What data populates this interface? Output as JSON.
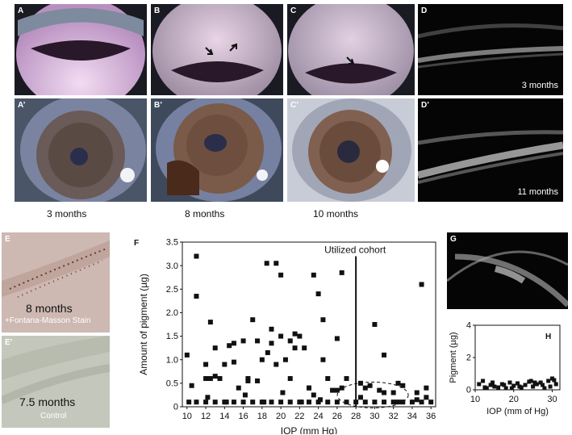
{
  "panels": {
    "A": "A",
    "B": "B",
    "C": "C",
    "D": "D",
    "A2": "A’",
    "B2": "B’",
    "C2": "C’",
    "D2": "D’",
    "E": "E",
    "E2": "E’",
    "F": "F",
    "G": "G",
    "H": "H"
  },
  "captions": {
    "a2": "3 months",
    "b2": "8 months",
    "c2": "10 months",
    "d": "3 months",
    "d2": "11 months"
  },
  "histology": {
    "e_time": "8 months",
    "e_stain": "+Fontana-Masson Stain",
    "e2_time": "7.5 months",
    "e2_stain": "Control"
  },
  "chart_data": [
    {
      "panel": "F",
      "type": "scatter",
      "xlabel": "IOP (mm Hg)",
      "ylabel": "Amount of pigment (µg)",
      "xlim": [
        9.5,
        36.5
      ],
      "ylim": [
        0,
        3.5
      ],
      "xticks": [
        10,
        12,
        14,
        16,
        18,
        20,
        22,
        24,
        26,
        28,
        30,
        32,
        34,
        36
      ],
      "yticks": [
        0,
        0.5,
        1.0,
        1.5,
        2.0,
        2.5,
        3.0,
        3.5
      ],
      "ytick_labels": [
        "0",
        "0.5",
        "1.0",
        "1.5",
        "2.0",
        "2.5",
        "3.0",
        "3.5"
      ],
      "annotation": "Utilized cohort",
      "cutoff_x": 28,
      "x": [
        10,
        11,
        11,
        12,
        12,
        12.5,
        13,
        13.5,
        14,
        14.5,
        15,
        15.5,
        16,
        16.5,
        17,
        17.5,
        18,
        18.5,
        18.6,
        19,
        19.5,
        20,
        20,
        20.5,
        21,
        21.5,
        22,
        22.5,
        23,
        23.5,
        24,
        24.5,
        25,
        26,
        26.5,
        28.5,
        30,
        31,
        32.5,
        35,
        35.5,
        10.2,
        11,
        12,
        13,
        14,
        15,
        16,
        17,
        18,
        19,
        20,
        21,
        22,
        23,
        24,
        25,
        26,
        27,
        28,
        29,
        30,
        31,
        32,
        33,
        34,
        35,
        36,
        10.5,
        12.5,
        15,
        17.5,
        19,
        21,
        23,
        24.5,
        25.5,
        27,
        29,
        31,
        33,
        34.5,
        12.2,
        14.2,
        16.2,
        18.2,
        20.2,
        22.2,
        24.2,
        26.5,
        28.5,
        30.5,
        32.5,
        34.5,
        13,
        16.5,
        19.5,
        21.5,
        23.5,
        26,
        29.5,
        32,
        35.5
      ],
      "y": [
        1.1,
        3.2,
        2.35,
        0.9,
        0.6,
        1.8,
        1.25,
        0.6,
        0.9,
        1.3,
        1.35,
        0.4,
        1.4,
        0.6,
        1.85,
        1.4,
        1.0,
        3.05,
        1.15,
        1.65,
        3.05,
        2.8,
        1.5,
        1.0,
        0.6,
        1.55,
        1.5,
        1.25,
        0.4,
        2.8,
        2.4,
        1.85,
        0.6,
        1.45,
        2.85,
        0.5,
        1.75,
        1.1,
        0.5,
        2.6,
        0.4,
        0.1,
        0.1,
        0.1,
        0.1,
        0.1,
        0.1,
        0.1,
        0.1,
        0.1,
        0.1,
        0.1,
        0.1,
        0.1,
        0.1,
        0.1,
        0.1,
        0.1,
        0.1,
        0.1,
        0.1,
        0.1,
        0.1,
        0.1,
        0.1,
        0.1,
        0.1,
        0.1,
        0.45,
        0.6,
        0.95,
        0.55,
        1.35,
        1.4,
        0.4,
        1.0,
        0.35,
        0.6,
        0.4,
        0.3,
        0.45,
        0.3,
        0.2,
        0.1,
        0.25,
        0.1,
        0.3,
        0.1,
        0.15,
        0.4,
        0.2,
        0.35,
        0.1,
        0.15,
        0.65,
        0.55,
        0.9,
        1.25,
        0.25,
        0.35,
        0.45,
        0.3,
        0.2
      ]
    },
    {
      "panel": "H",
      "type": "scatter",
      "xlabel": "IOP (mm of Hg)",
      "ylabel": "Pigment (µg)",
      "xlim": [
        10,
        32
      ],
      "ylim": [
        0,
        4
      ],
      "xticks": [
        10,
        20,
        30
      ],
      "yticks": [
        0,
        2,
        4
      ],
      "x": [
        11,
        12,
        13,
        14,
        15,
        16,
        17,
        18,
        19,
        20,
        21,
        22,
        23,
        24,
        25,
        26,
        27,
        28,
        29,
        30,
        31,
        12.5,
        14.5,
        17.5,
        21.5,
        24.5,
        27.5,
        30.5,
        19.5,
        25.5,
        29.5
      ],
      "y": [
        0.35,
        0.55,
        0.1,
        0.3,
        0.2,
        0.15,
        0.35,
        0.1,
        0.45,
        0.25,
        0.4,
        0.15,
        0.3,
        0.5,
        0.2,
        0.35,
        0.45,
        0.1,
        0.55,
        0.7,
        0.35,
        0.15,
        0.45,
        0.3,
        0.2,
        0.55,
        0.3,
        0.6,
        0.1,
        0.45,
        0.2
      ]
    }
  ],
  "colors": {
    "marker": "#111111",
    "gonio_light": "#e6c9e6",
    "gonio_dark": "#241820"
  }
}
